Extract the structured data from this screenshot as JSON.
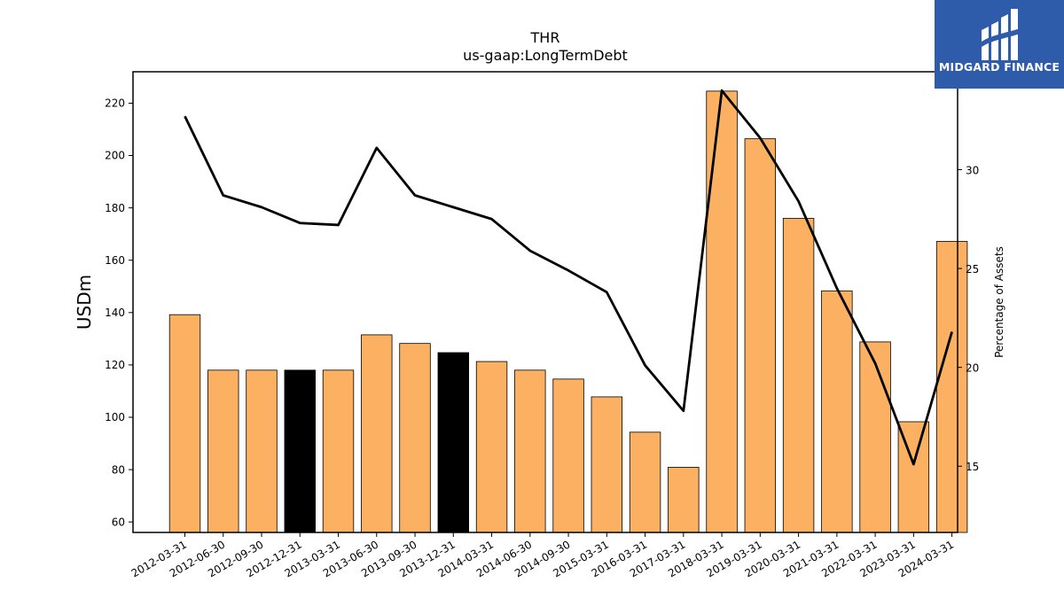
{
  "chart_data": {
    "type": "bar",
    "title": "THR",
    "subtitle": "us-gaap:LongTermDebt",
    "ylabel": "USDm",
    "y2label": "Percentage of Assets",
    "ylim": [
      56,
      232
    ],
    "y2lim": [
      11.65,
      34.95
    ],
    "yticks": [
      60,
      80,
      100,
      120,
      140,
      160,
      180,
      200,
      220
    ],
    "y2ticks": [
      15,
      20,
      25,
      30
    ],
    "categories": [
      "2012-03-31",
      "2012-06-30",
      "2012-09-30",
      "2012-12-31",
      "2013-03-31",
      "2013-06-30",
      "2013-09-30",
      "2013-12-31",
      "2014-03-31",
      "2014-06-30",
      "2014-09-30",
      "2015-03-31",
      "2016-03-31",
      "2017-03-31",
      "2018-03-31",
      "2019-03-31",
      "2020-03-31",
      "2021-03-31",
      "2022-03-31",
      "2023-03-31",
      "2024-03-31"
    ],
    "bars": {
      "values": [
        139.2,
        118.0,
        118.0,
        118.0,
        118.0,
        131.5,
        128.2,
        124.7,
        121.3,
        118.0,
        114.6,
        107.8,
        94.3,
        80.9,
        224.6,
        206.4,
        176.0,
        148.3,
        128.8,
        98.3,
        167.2
      ],
      "colors": [
        "#fbb161",
        "#fbb161",
        "#fbb161",
        "#000000",
        "#fbb161",
        "#fbb161",
        "#fbb161",
        "#000000",
        "#fbb161",
        "#fbb161",
        "#fbb161",
        "#fbb161",
        "#fbb161",
        "#fbb161",
        "#fbb161",
        "#fbb161",
        "#fbb161",
        "#fbb161",
        "#fbb161",
        "#fbb161",
        "#fbb161"
      ]
    },
    "line": {
      "axis": "right",
      "color": "#000000",
      "values": [
        32.7,
        28.7,
        28.1,
        27.3,
        27.2,
        31.1,
        28.7,
        28.1,
        27.5,
        25.9,
        24.9,
        23.8,
        20.1,
        17.8,
        34.0,
        31.6,
        28.4,
        24.0,
        20.2,
        15.1,
        21.8
      ]
    },
    "grid": false,
    "legend": "none"
  },
  "logo": {
    "text": "MIDGARD FINANCE",
    "color": "#2f5bab"
  }
}
